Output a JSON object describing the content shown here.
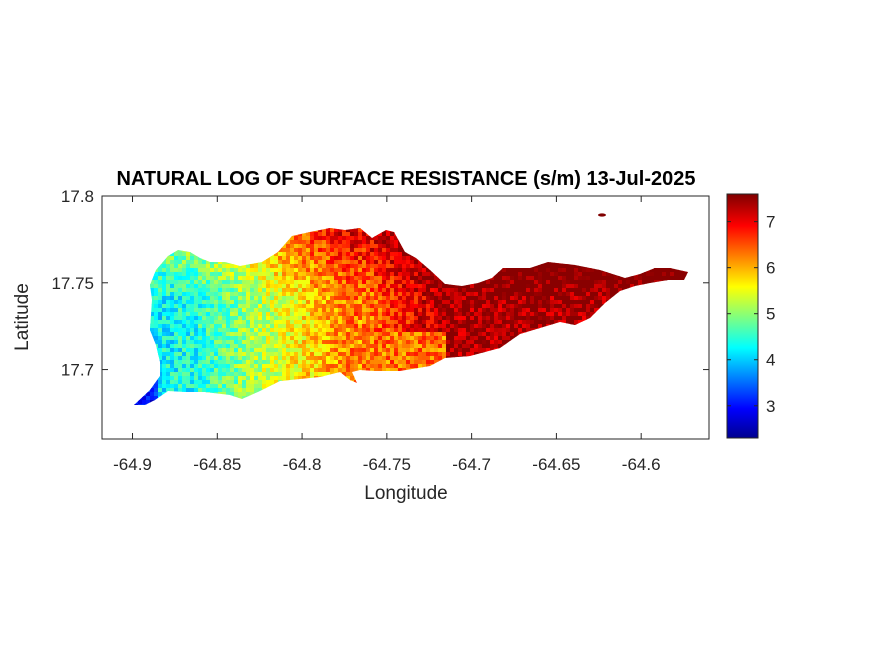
{
  "chart_data": {
    "type": "heatmap",
    "title": "NATURAL LOG OF SURFACE RESISTANCE (s/m) 13-Jul-2025",
    "xlabel": "Longitude",
    "ylabel": "Latitude",
    "xlim": [
      -64.918,
      -64.56
    ],
    "ylim": [
      17.66,
      17.8
    ],
    "xticks": [
      -64.9,
      -64.85,
      -64.8,
      -64.75,
      -64.7,
      -64.65,
      -64.6
    ],
    "xtick_labels": [
      "-64.9",
      "-64.85",
      "-64.8",
      "-64.75",
      "-64.7",
      "-64.65",
      "-64.6"
    ],
    "yticks": [
      17.7,
      17.75,
      17.8
    ],
    "ytick_labels": [
      "17.7",
      "17.75",
      "17.8"
    ],
    "colorbar": {
      "colormap": "jet",
      "range": [
        2.3,
        7.6
      ],
      "ticks": [
        3,
        4,
        5,
        6,
        7
      ],
      "tick_labels": [
        "3",
        "4",
        "5",
        "6",
        "7"
      ]
    },
    "colormap_colors": [
      "#00008f",
      "#0000ff",
      "#00ffff",
      "#ffff00",
      "#ff0000",
      "#800000"
    ],
    "grid": false
  }
}
